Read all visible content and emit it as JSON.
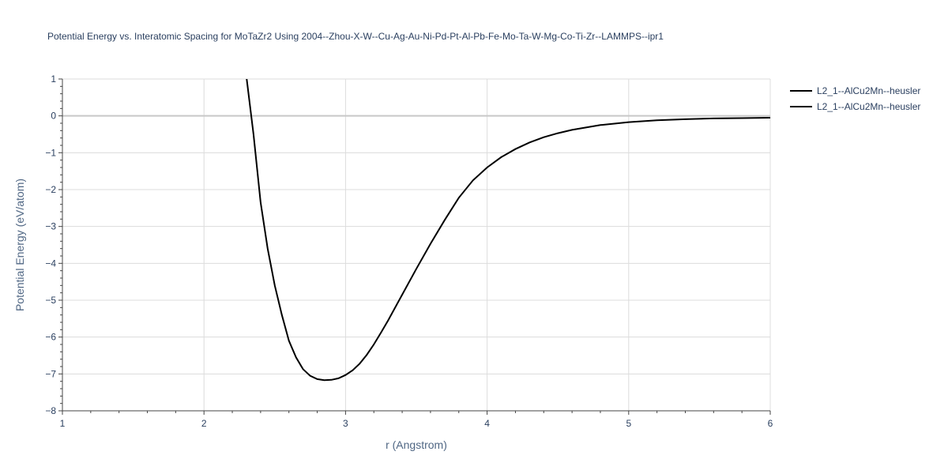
{
  "chart_data": {
    "type": "line",
    "title": "Potential Energy vs. Interatomic Spacing for MoTaZr2 Using 2004--Zhou-X-W--Cu-Ag-Au-Ni-Pd-Pt-Al-Pb-Fe-Mo-Ta-W-Mg-Co-Ti-Zr--LAMMPS--ipr1",
    "xlabel": "r (Angstrom)",
    "ylabel": "Potential Energy (eV/atom)",
    "xlim": [
      1,
      6
    ],
    "ylim": [
      -8,
      1
    ],
    "xticks": [
      1,
      2,
      3,
      4,
      5,
      6
    ],
    "xtick_labels": [
      "1",
      "2",
      "3",
      "4",
      "5",
      "6"
    ],
    "yticks": [
      1,
      0,
      -1,
      -2,
      -3,
      -4,
      -5,
      -6,
      -7,
      -8
    ],
    "ytick_labels": [
      "1",
      "0",
      "−1",
      "−2",
      "−3",
      "−4",
      "−5",
      "−6",
      "−7",
      "−8"
    ],
    "grid": true,
    "legend_position": "top-right",
    "series": [
      {
        "name": "L2_1--AlCu2Mn--heusler",
        "color": "#000000",
        "x": [
          2.3,
          2.35,
          2.4,
          2.45,
          2.5,
          2.55,
          2.6,
          2.65,
          2.7,
          2.75,
          2.8,
          2.85,
          2.9,
          2.95,
          3.0,
          3.05,
          3.1,
          3.15,
          3.2,
          3.25,
          3.3,
          3.4,
          3.5,
          3.6,
          3.7,
          3.8,
          3.9,
          4.0,
          4.1,
          4.2,
          4.3,
          4.4,
          4.5,
          4.6,
          4.8,
          5.0,
          5.2,
          5.4,
          5.6,
          5.8,
          6.0
        ],
        "y": [
          1.05,
          -0.5,
          -2.35,
          -3.6,
          -4.6,
          -5.4,
          -6.1,
          -6.55,
          -6.87,
          -7.05,
          -7.14,
          -7.17,
          -7.16,
          -7.12,
          -7.03,
          -6.9,
          -6.72,
          -6.48,
          -6.2,
          -5.88,
          -5.55,
          -4.85,
          -4.15,
          -3.47,
          -2.83,
          -2.22,
          -1.75,
          -1.4,
          -1.12,
          -0.9,
          -0.72,
          -0.58,
          -0.47,
          -0.38,
          -0.25,
          -0.17,
          -0.12,
          -0.09,
          -0.07,
          -0.06,
          -0.05
        ]
      },
      {
        "name": "L2_1--AlCu2Mn--heusler",
        "color": "#000000",
        "x": [],
        "y": []
      }
    ]
  }
}
